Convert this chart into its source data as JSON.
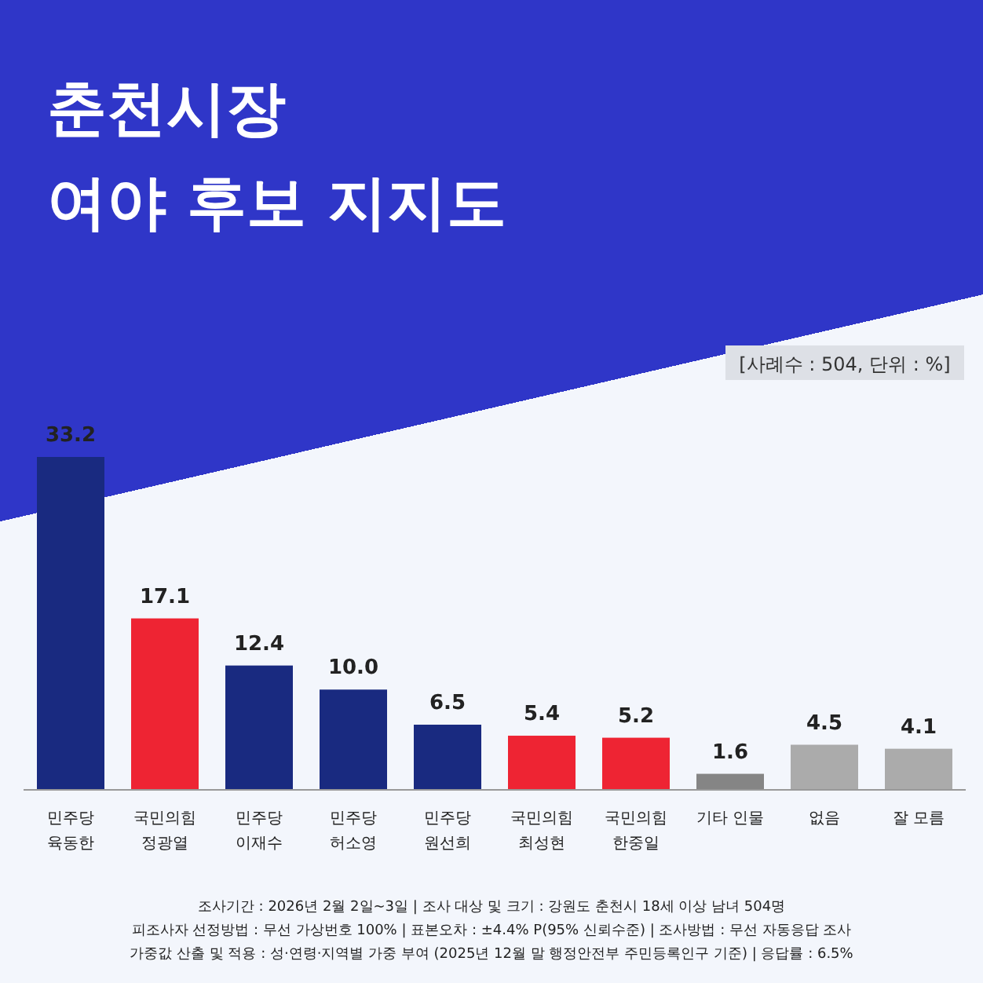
{
  "chart_data": {
    "type": "bar",
    "title": "춘천시장\n여야 후보 지지도",
    "subtitle": "[사례수 : 504, 단위 : %]",
    "categories": [
      "민주당\n육동한",
      "국민의힘\n정광열",
      "민주당\n이재수",
      "민주당\n허소영",
      "민주당\n원선희",
      "국민의힘\n최성현",
      "국민의힘\n한중일",
      "기타 인물",
      "없음",
      "잘 모름"
    ],
    "values": [
      33.2,
      17.1,
      12.4,
      10.0,
      6.5,
      5.4,
      5.2,
      1.6,
      4.5,
      4.1
    ],
    "value_labels": [
      "33.2",
      "17.1",
      "12.4",
      "10.0",
      "6.5",
      "5.4",
      "5.2",
      "1.6",
      "4.5",
      "4.1"
    ],
    "colors": [
      "#192a80",
      "#ee2433",
      "#192a80",
      "#192a80",
      "#192a80",
      "#ee2433",
      "#ee2433",
      "#858585",
      "#ababab",
      "#ababab"
    ],
    "annotations": [
      "조사기간 : 2026년 2월 2일~3일 | 조사 대상 및 크기 : 강원도 춘천시 18세 이상 남녀 504명",
      "피조사자 선정방법 : 무선 가상번호 100% | 표본오차 : ±4.4% P(95% 신뢰수준) | 조사방법 : 무선 자동응답 조사",
      "가중값 산출 및 적용 : 성·연령·지역별 가중 부여 (2025년 12월 말 행정안전부 주민등록인구 기준) | 응답률 : 6.5%"
    ],
    "data_labels": false
  }
}
